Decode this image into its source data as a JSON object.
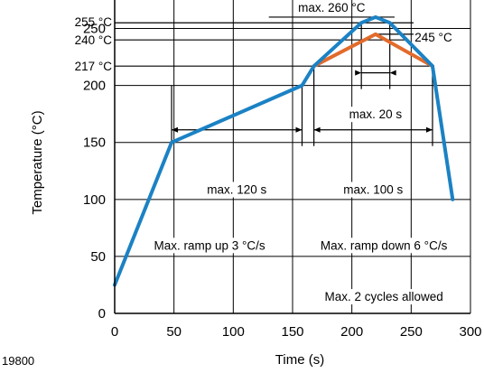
{
  "chart_data": {
    "type": "line",
    "figure_id": "19800",
    "xlabel": "Time (s)",
    "ylabel": "Temperature (°C)",
    "xlim": [
      0,
      300
    ],
    "ylim": [
      0,
      275
    ],
    "xticks": [
      0,
      50,
      100,
      150,
      200,
      250,
      300
    ],
    "yticks": [
      0,
      50,
      100,
      150,
      200,
      250
    ],
    "grid": true,
    "series": [
      {
        "color": "#1b82c4",
        "x": [
          0,
          48,
          158,
          168,
          208,
          220,
          232,
          268,
          285
        ],
        "y": [
          25,
          150,
          200,
          217,
          255,
          260,
          255,
          217,
          100
        ]
      },
      {
        "color": "#e26b2c",
        "x": [
          168,
          220,
          268
        ],
        "y": [
          217,
          245,
          217
        ]
      }
    ],
    "reference_lines": [
      {
        "label": "217 °C",
        "y": 217,
        "x_from": 0,
        "x_to": 268
      },
      {
        "label": "240 °C",
        "y": 240,
        "x_from": 0,
        "x_to": 248
      },
      {
        "label": "245 °C",
        "y": 245,
        "x_from": 220,
        "x_to": 252
      },
      {
        "label": "255 °C",
        "y": 255,
        "x_from": 0,
        "x_to": 252
      },
      {
        "label": "max. 260 °C",
        "y": 260,
        "x_from": 130,
        "x_to": 236
      }
    ],
    "segment_markers": [
      {
        "from": 48,
        "to": 158,
        "y": 200,
        "label_y": 150
      },
      {
        "from": 168,
        "to": 268,
        "y": 217,
        "label_y": 150
      },
      {
        "from": 208,
        "to": 232,
        "y": 255,
        "label_y": 200
      }
    ],
    "annotations": [
      {
        "text": "max. 120 s",
        "x": 103,
        "y": 109
      },
      {
        "text": "max. 100 s",
        "x": 218,
        "y": 109
      },
      {
        "text": "max. 20 s",
        "x": 220,
        "y": 175
      },
      {
        "text": "Max. ramp up 3 °C/s",
        "x": 80,
        "y": 60
      },
      {
        "text": "Max. ramp down 6 °C/s",
        "x": 227,
        "y": 60
      },
      {
        "text": "Max. 2 cycles allowed",
        "x": 227,
        "y": 15
      }
    ]
  }
}
